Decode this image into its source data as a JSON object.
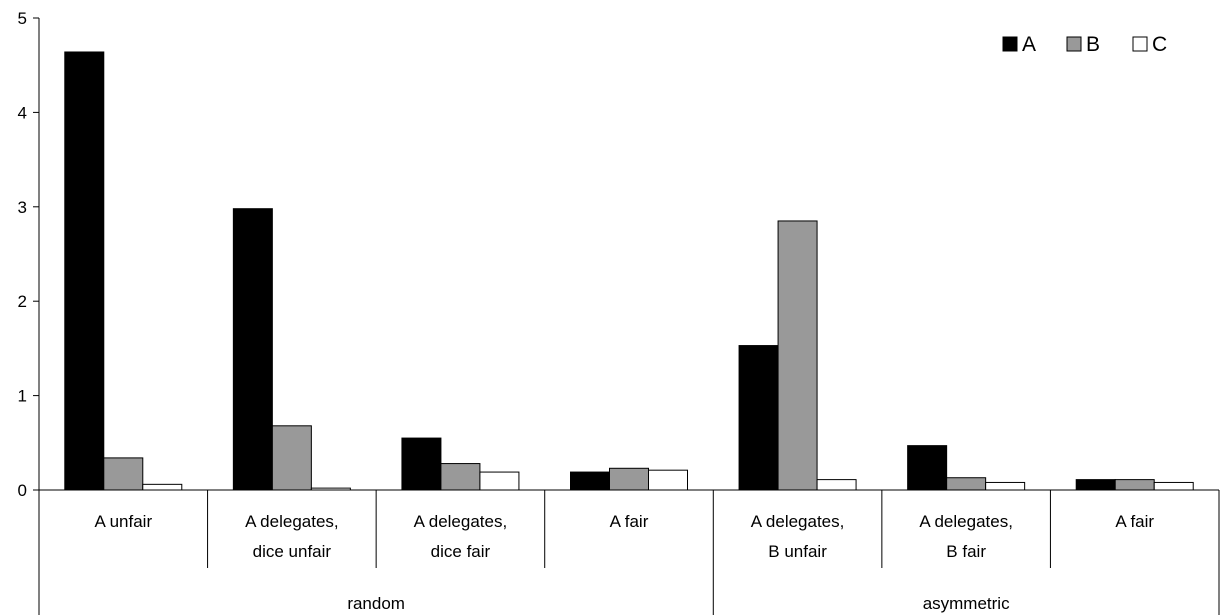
{
  "chart_data": {
    "type": "bar",
    "title": "",
    "xlabel": "",
    "ylabel": "",
    "ylim": [
      0,
      5
    ],
    "yticks": [
      0,
      1,
      2,
      3,
      4,
      5
    ],
    "grid": false,
    "legend_position": "top-right",
    "groups": [
      {
        "label": "random",
        "categories": [
          "A unfair",
          "A delegates,\ndice unfair",
          "A delegates,\ndice fair",
          "A fair"
        ]
      },
      {
        "label": "asymmetric",
        "categories": [
          "A delegates,\nB unfair",
          "A delegates,\nB fair",
          "A fair"
        ]
      }
    ],
    "categories": [
      "A unfair",
      "A delegates,\ndice unfair",
      "A delegates,\ndice fair",
      "A fair",
      "A delegates,\nB unfair",
      "A delegates,\nB fair",
      "A fair"
    ],
    "series": [
      {
        "name": "A",
        "color": "#000000",
        "values": [
          4.64,
          2.98,
          0.55,
          0.19,
          1.53,
          0.47,
          0.11
        ]
      },
      {
        "name": "B",
        "color": "#999999",
        "values": [
          0.34,
          0.68,
          0.28,
          0.23,
          2.85,
          0.13,
          0.11
        ]
      },
      {
        "name": "C",
        "color": "#ffffff",
        "values": [
          0.06,
          0.02,
          0.19,
          0.21,
          0.11,
          0.08,
          0.08
        ]
      }
    ]
  }
}
